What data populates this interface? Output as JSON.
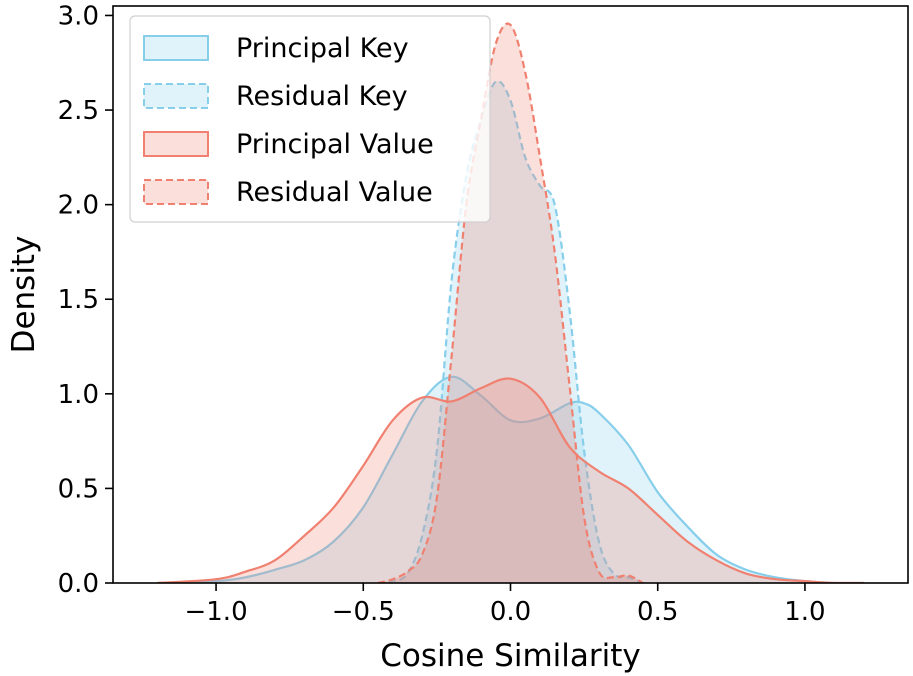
{
  "chart_data": {
    "type": "area",
    "xlabel": "Cosine Similarity",
    "ylabel": "Density",
    "xlim": [
      -1.35,
      1.35
    ],
    "ylim": [
      0,
      3.05
    ],
    "xticks": [
      -1.0,
      -0.5,
      0.0,
      0.5,
      1.0
    ],
    "xtick_labels": [
      "−1.0",
      "−0.5",
      "0.0",
      "0.5",
      "1.0"
    ],
    "yticks": [
      0.0,
      0.5,
      1.0,
      1.5,
      2.0,
      2.5,
      3.0
    ],
    "ytick_labels": [
      "0.0",
      "0.5",
      "1.0",
      "1.5",
      "2.0",
      "2.5",
      "3.0"
    ],
    "grid": false,
    "legend_position": "top-left",
    "series": [
      {
        "name": "Principal Key",
        "color": "#87CEEB",
        "line_style": "solid",
        "x": [
          -1.2,
          -1.0,
          -0.9,
          -0.8,
          -0.7,
          -0.6,
          -0.5,
          -0.4,
          -0.3,
          -0.2,
          -0.1,
          0.0,
          0.1,
          0.2,
          0.25,
          0.3,
          0.4,
          0.5,
          0.6,
          0.7,
          0.8,
          0.9,
          1.0,
          1.1,
          1.2
        ],
        "y": [
          0.0,
          0.01,
          0.03,
          0.07,
          0.12,
          0.22,
          0.4,
          0.68,
          0.96,
          1.09,
          0.99,
          0.86,
          0.87,
          0.95,
          0.95,
          0.9,
          0.73,
          0.48,
          0.3,
          0.15,
          0.07,
          0.03,
          0.01,
          0.0,
          0.0
        ]
      },
      {
        "name": "Residual Key",
        "color": "#87CEEB",
        "line_style": "dashed",
        "x": [
          -0.45,
          -0.4,
          -0.35,
          -0.3,
          -0.25,
          -0.2,
          -0.15,
          -0.1,
          -0.05,
          0.0,
          0.05,
          0.1,
          0.15,
          0.2,
          0.25,
          0.3,
          0.35,
          0.4,
          0.45
        ],
        "y": [
          0.0,
          0.01,
          0.05,
          0.25,
          0.7,
          1.6,
          2.15,
          2.45,
          2.65,
          2.55,
          2.25,
          2.1,
          2.0,
          1.45,
          0.7,
          0.22,
          0.05,
          0.03,
          0.0
        ]
      },
      {
        "name": "Principal Value",
        "color": "#F08070",
        "line_style": "solid",
        "x": [
          -1.2,
          -1.0,
          -0.9,
          -0.8,
          -0.7,
          -0.6,
          -0.5,
          -0.4,
          -0.3,
          -0.2,
          -0.1,
          0.0,
          0.1,
          0.2,
          0.3,
          0.4,
          0.5,
          0.6,
          0.7,
          0.8,
          0.9,
          1.0,
          1.1,
          1.2
        ],
        "y": [
          0.0,
          0.02,
          0.06,
          0.12,
          0.25,
          0.4,
          0.62,
          0.86,
          0.98,
          0.96,
          1.03,
          1.08,
          0.98,
          0.72,
          0.59,
          0.5,
          0.36,
          0.22,
          0.12,
          0.05,
          0.02,
          0.01,
          0.0,
          0.0
        ]
      },
      {
        "name": "Residual Value",
        "color": "#F08070",
        "line_style": "dashed",
        "x": [
          -0.45,
          -0.4,
          -0.35,
          -0.3,
          -0.25,
          -0.2,
          -0.15,
          -0.1,
          -0.05,
          0.0,
          0.05,
          0.1,
          0.15,
          0.2,
          0.25,
          0.3,
          0.35,
          0.4,
          0.45
        ],
        "y": [
          0.0,
          0.02,
          0.06,
          0.15,
          0.45,
          1.2,
          2.0,
          2.45,
          2.85,
          2.95,
          2.7,
          2.25,
          1.75,
          1.05,
          0.35,
          0.06,
          0.03,
          0.04,
          0.0
        ]
      }
    ]
  }
}
